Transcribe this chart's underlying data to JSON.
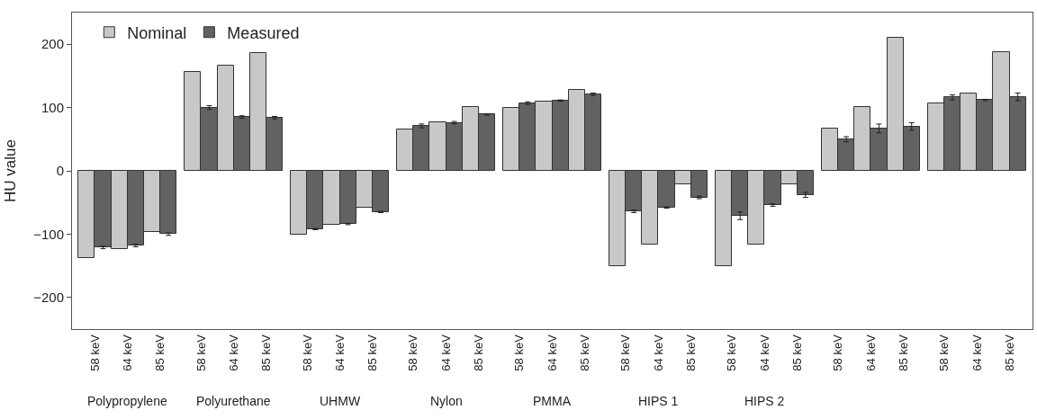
{
  "chart_data": {
    "type": "bar",
    "ylabel": "HU value",
    "categories": [
      "58 keV",
      "64 keV",
      "85 keV",
      "58 keV",
      "64 keV",
      "85 keV",
      "58 keV",
      "64 keV",
      "85 keV",
      "58 keV",
      "64 keV",
      "85 keV",
      "58 keV",
      "64 keV",
      "85 keV",
      "58 keV",
      "64 keV",
      "85 keV",
      "58 keV",
      "64 keV",
      "85 keV",
      "58 keV",
      "64 keV",
      "85 keV",
      "58 keV",
      "64 keV",
      "85 keV"
    ],
    "series": [
      {
        "name": "Nominal",
        "color": "#c8c8c8",
        "values": [
          -138,
          -123,
          -97,
          156,
          166,
          186,
          -101,
          -85,
          -58,
          65,
          77,
          101,
          99,
          110,
          128,
          -150,
          -116,
          -22,
          -150,
          -116,
          -22,
          67,
          101,
          210,
          107,
          122,
          188
        ]
      },
      {
        "name": "Measured",
        "color": "#626262",
        "values": [
          -121,
          -118,
          -100,
          100,
          85,
          84,
          -92,
          -84,
          -65,
          71,
          76,
          89,
          107,
          111,
          121,
          -64,
          -58,
          -42,
          -71,
          -54,
          -38,
          50,
          67,
          70,
          116,
          112,
          117
        ],
        "errors": [
          2,
          2,
          2,
          3,
          2,
          2,
          1,
          1,
          1,
          3,
          2,
          1,
          2,
          1,
          2,
          2,
          1,
          2,
          6,
          2,
          4,
          4,
          7,
          6,
          4,
          1,
          6
        ]
      }
    ],
    "annotations": [
      "Polypropylene",
      "Polyurethane",
      "UHMW",
      "Nylon",
      "PMMA",
      "HIPS 1",
      "HIPS 2"
    ],
    "ylim": [
      -250,
      250
    ],
    "yticks": [
      -200,
      -100,
      0,
      100,
      200
    ],
    "legend": "top left"
  }
}
